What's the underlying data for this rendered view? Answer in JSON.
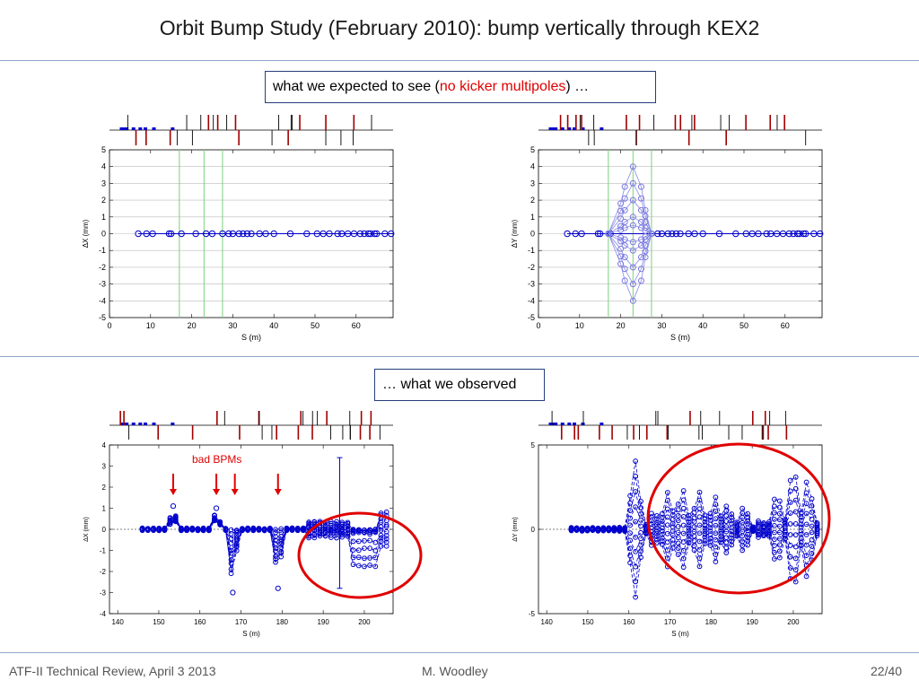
{
  "slide": {
    "title": "Orbit Bump Study (February 2010): bump vertically through KEX2",
    "box_expected_before": "what we expected to see (",
    "box_expected_red": "no kicker multipoles",
    "box_expected_after": ") …",
    "box_observed": "… what we observed",
    "bad_bpms_label": "bad BPMs"
  },
  "footer": {
    "left": "ATF-II Technical Review, April 3 2013",
    "center": "M. Woodley",
    "right": "22/40"
  },
  "colors": {
    "marker": "#0000cc",
    "accent_red": "#e00000",
    "guide_green": "#7ad27a",
    "rule": "#8fa6c8"
  },
  "chart_data": [
    {
      "id": "expected_x",
      "type": "line",
      "xlabel": "S (m)",
      "ylabel": "ΔX (mm)",
      "xlim": [
        0,
        69
      ],
      "ylim": [
        -5,
        5
      ],
      "xticks": [
        0,
        10,
        20,
        30,
        40,
        50,
        60
      ],
      "yticks": [
        5,
        4,
        3,
        2,
        1,
        0,
        -1,
        -2,
        -3,
        -4,
        -5
      ],
      "grid": true,
      "corrector_lines_s": [
        17,
        23,
        27.5
      ],
      "bpm_s": [
        7,
        9,
        10.5,
        14.5,
        15,
        17.5,
        21,
        23.5,
        25,
        27.5,
        29,
        30,
        31.5,
        32.5,
        33.5,
        34.5,
        36.5,
        38,
        40,
        44,
        48,
        50.5,
        52,
        53.5,
        55.5,
        56.5,
        58,
        59.5,
        61,
        62,
        63,
        63.5,
        64.5,
        65,
        67,
        68.5
      ],
      "series": [
        {
          "values_all": 0
        }
      ]
    },
    {
      "id": "expected_y",
      "type": "line",
      "xlabel": "S (m)",
      "ylabel": "ΔY (mm)",
      "xlim": [
        0,
        69
      ],
      "ylim": [
        -5,
        5
      ],
      "xticks": [
        0,
        10,
        20,
        30,
        40,
        50,
        60
      ],
      "yticks": [
        5,
        4,
        3,
        2,
        1,
        0,
        -1,
        -2,
        -3,
        -4,
        -5
      ],
      "grid": true,
      "corrector_lines_s": [
        17,
        23,
        27.5
      ],
      "bpm_s": [
        7,
        9,
        10.5,
        14.5,
        15,
        17.5,
        29,
        30,
        31.5,
        32.5,
        33.5,
        34.5,
        36.5,
        38,
        40,
        44,
        48,
        50.5,
        52,
        53.5,
        55.5,
        56.5,
        58,
        59.5,
        61,
        62,
        63,
        63.5,
        64.5,
        65,
        67,
        68.5
      ],
      "bump_s": [
        17,
        20,
        21,
        23,
        25,
        26,
        27.5
      ],
      "bump_peaks": [
        4,
        3,
        2,
        1,
        0.5,
        -0.5,
        -1,
        -2,
        -3,
        -4
      ],
      "bump_shape": [
        0,
        0.45,
        0.7,
        1.0,
        0.7,
        0.35,
        0
      ]
    },
    {
      "id": "observed_x",
      "type": "line",
      "xlabel": "S (m)",
      "ylabel": "ΔX (mm)",
      "xlim": [
        138,
        207
      ],
      "ylim": [
        -4,
        4
      ],
      "xticks": [
        140,
        150,
        160,
        170,
        180,
        190,
        200
      ],
      "yticks": [
        4,
        3,
        2,
        1,
        0,
        -1,
        -2,
        -3,
        -4
      ],
      "arrows_s": [
        153.5,
        164,
        168.5,
        179
      ],
      "bad_bpm_peaks": [
        [
          153.5,
          1.1
        ],
        [
          164,
          1.0
        ],
        [
          168,
          -3.0
        ],
        [
          179,
          -2.8
        ]
      ],
      "bad_bpms_label": "bad BPMs",
      "errorbar": {
        "s": 194,
        "lo": -2.8,
        "hi": 3.4
      }
    },
    {
      "id": "observed_y",
      "type": "line",
      "xlabel": "S (m)",
      "ylabel": "ΔY (mm)",
      "xlim": [
        138,
        207
      ],
      "ylim": [
        -5,
        5
      ],
      "xticks": [
        140,
        150,
        160,
        170,
        180,
        190,
        200
      ],
      "yticks": [
        5,
        0,
        -5
      ]
    }
  ]
}
